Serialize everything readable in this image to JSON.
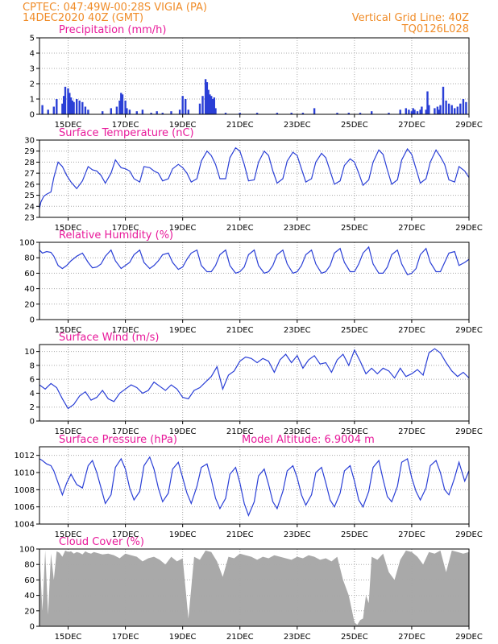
{
  "header": {
    "station": "CPTEC:   047:49W-00:28S   VIGIA (PA)",
    "run_time": "14DEC2020 40Z (GMT)",
    "grid_label": "Vertical Grid Line: 40Z",
    "product_code": "TQ0126L028"
  },
  "colors": {
    "header": "#f08c28",
    "title": "#e8199a",
    "line": "#2a3fd6",
    "cloud": "#a9a9a9",
    "grid": "#a8a8a8"
  },
  "chart_data": [
    {
      "type": "bar",
      "title": "Precipitation (mm/h)",
      "x_ticks": [
        "15DEC",
        "17DEC",
        "19DEC",
        "21DEC",
        "23DEC",
        "25DEC",
        "27DEC",
        "29DEC"
      ],
      "ylim": [
        0,
        5
      ],
      "y_ticks": [
        0,
        1,
        2,
        3,
        4,
        5
      ],
      "x_range_days": [
        14.0,
        29.0
      ],
      "color": "#2a3fd6",
      "x": [
        14.1,
        14.3,
        14.5,
        14.6,
        14.8,
        14.85,
        14.9,
        15.0,
        15.05,
        15.1,
        15.15,
        15.2,
        15.3,
        15.4,
        15.5,
        15.6,
        15.7,
        16.2,
        16.5,
        16.7,
        16.8,
        16.85,
        16.9,
        17.0,
        17.05,
        17.15,
        17.4,
        17.6,
        17.9,
        18.1,
        18.3,
        18.6,
        18.9,
        19.0,
        19.1,
        19.2,
        19.6,
        19.7,
        19.8,
        19.85,
        19.9,
        19.95,
        20.0,
        20.05,
        20.1,
        20.15,
        20.5,
        21.0,
        21.6,
        22.3,
        22.8,
        23.2,
        23.6,
        24.4,
        24.8,
        25.2,
        25.6,
        26.2,
        26.6,
        26.8,
        26.9,
        27.0,
        27.05,
        27.1,
        27.2,
        27.3,
        27.35,
        27.5,
        27.55,
        27.6,
        27.8,
        27.9,
        27.95,
        28.0,
        28.1,
        28.2,
        28.3,
        28.4,
        28.5,
        28.6,
        28.7,
        28.8,
        28.9
      ],
      "values": [
        0.6,
        0.3,
        0.5,
        1.0,
        0.7,
        1.2,
        1.8,
        1.7,
        1.4,
        1.1,
        0.9,
        0.8,
        1.0,
        0.9,
        0.8,
        0.5,
        0.3,
        0.2,
        0.4,
        0.5,
        0.9,
        1.4,
        1.3,
        0.9,
        0.4,
        0.3,
        0.2,
        0.3,
        0.1,
        0.2,
        0.1,
        0.2,
        0.3,
        1.2,
        1.0,
        0.3,
        0.7,
        1.2,
        2.3,
        2.1,
        1.6,
        1.3,
        1.2,
        1.0,
        1.1,
        0.4,
        0.1,
        0.1,
        0.1,
        0.1,
        0.1,
        0.1,
        0.4,
        0.1,
        0.1,
        0.1,
        0.2,
        0.1,
        0.3,
        0.4,
        0.3,
        0.2,
        0.4,
        0.3,
        0.2,
        0.3,
        0.5,
        0.3,
        1.5,
        0.6,
        0.4,
        0.5,
        0.3,
        0.6,
        1.8,
        0.9,
        0.7,
        0.6,
        0.4,
        0.5,
        0.7,
        1.0,
        0.8
      ]
    },
    {
      "type": "line",
      "title": "Surface Temperature (nC)",
      "x_ticks": [
        "15DEC",
        "17DEC",
        "19DEC",
        "21DEC",
        "23DEC",
        "25DEC",
        "27DEC",
        "29DEC"
      ],
      "ylim": [
        23,
        30
      ],
      "y_ticks": [
        23,
        24,
        25,
        26,
        27,
        28,
        29,
        30
      ],
      "x_range_days": [
        14.0,
        29.0
      ],
      "color": "#2a3fd6",
      "x": [
        14.0,
        14.05,
        14.15,
        14.25,
        14.4,
        14.5,
        14.65,
        14.8,
        14.95,
        15.1,
        15.3,
        15.5,
        15.7,
        15.85,
        16.0,
        16.15,
        16.3,
        16.5,
        16.65,
        16.85,
        17.0,
        17.15,
        17.3,
        17.5,
        17.65,
        17.85,
        18.0,
        18.15,
        18.3,
        18.5,
        18.65,
        18.85,
        19.0,
        19.15,
        19.3,
        19.5,
        19.65,
        19.85,
        20.0,
        20.15,
        20.3,
        20.5,
        20.65,
        20.85,
        21.0,
        21.15,
        21.3,
        21.5,
        21.65,
        21.85,
        22.0,
        22.15,
        22.3,
        22.5,
        22.65,
        22.85,
        23.0,
        23.15,
        23.3,
        23.5,
        23.65,
        23.85,
        24.0,
        24.15,
        24.3,
        24.5,
        24.65,
        24.85,
        25.0,
        25.15,
        25.3,
        25.5,
        25.65,
        25.85,
        26.0,
        26.15,
        26.3,
        26.5,
        26.65,
        26.85,
        27.0,
        27.15,
        27.3,
        27.5,
        27.65,
        27.85,
        28.0,
        28.15,
        28.3,
        28.5,
        28.65,
        28.85,
        29.0
      ],
      "values": [
        23.8,
        24.4,
        24.9,
        25.1,
        25.3,
        26.6,
        28.0,
        27.6,
        26.8,
        26.2,
        25.6,
        26.3,
        27.6,
        27.3,
        27.2,
        26.8,
        26.1,
        27.0,
        28.2,
        27.5,
        27.4,
        27.2,
        26.5,
        26.2,
        27.6,
        27.5,
        27.2,
        27.0,
        26.3,
        26.5,
        27.4,
        27.8,
        27.5,
        27.0,
        26.2,
        26.5,
        28.1,
        29.0,
        28.6,
        27.8,
        26.5,
        26.5,
        28.4,
        29.3,
        29.0,
        27.8,
        26.3,
        26.4,
        28.0,
        29.0,
        28.6,
        27.2,
        26.1,
        26.5,
        28.1,
        28.9,
        28.6,
        27.4,
        26.2,
        26.5,
        28.0,
        28.8,
        28.4,
        27.2,
        26.0,
        26.3,
        27.7,
        28.3,
        28.0,
        27.0,
        25.9,
        26.4,
        28.0,
        29.1,
        28.7,
        27.3,
        26.0,
        26.4,
        28.2,
        29.2,
        28.7,
        27.4,
        26.1,
        26.5,
        28.0,
        29.1,
        28.5,
        27.8,
        26.4,
        26.2,
        27.6,
        27.2,
        26.6
      ]
    },
    {
      "type": "line",
      "title": "Relative Humidity (%)",
      "x_ticks": [
        "15DEC",
        "17DEC",
        "19DEC",
        "21DEC",
        "23DEC",
        "25DEC",
        "27DEC",
        "29DEC"
      ],
      "ylim": [
        0,
        100
      ],
      "y_ticks": [
        0,
        20,
        40,
        60,
        80,
        100
      ],
      "x_range_days": [
        14.0,
        29.0
      ],
      "color": "#2a3fd6",
      "x": [
        14.0,
        14.1,
        14.25,
        14.4,
        14.5,
        14.65,
        14.8,
        14.95,
        15.1,
        15.3,
        15.5,
        15.7,
        15.85,
        16.0,
        16.15,
        16.3,
        16.5,
        16.65,
        16.85,
        17.0,
        17.15,
        17.3,
        17.5,
        17.65,
        17.85,
        18.0,
        18.15,
        18.3,
        18.5,
        18.65,
        18.85,
        19.0,
        19.15,
        19.3,
        19.5,
        19.65,
        19.85,
        20.0,
        20.15,
        20.3,
        20.5,
        20.65,
        20.85,
        21.0,
        21.15,
        21.3,
        21.5,
        21.65,
        21.85,
        22.0,
        22.15,
        22.3,
        22.5,
        22.65,
        22.85,
        23.0,
        23.15,
        23.3,
        23.5,
        23.65,
        23.85,
        24.0,
        24.15,
        24.3,
        24.5,
        24.65,
        24.85,
        25.0,
        25.15,
        25.3,
        25.5,
        25.65,
        25.85,
        26.0,
        26.15,
        26.3,
        26.5,
        26.65,
        26.85,
        27.0,
        27.15,
        27.3,
        27.5,
        27.65,
        27.85,
        28.0,
        28.15,
        28.3,
        28.5,
        28.65,
        28.85,
        29.0
      ],
      "values": [
        90,
        86,
        88,
        87,
        82,
        70,
        66,
        70,
        76,
        82,
        86,
        74,
        67,
        68,
        72,
        82,
        90,
        76,
        66,
        70,
        74,
        84,
        90,
        74,
        66,
        70,
        76,
        84,
        86,
        74,
        65,
        68,
        78,
        86,
        90,
        70,
        62,
        62,
        70,
        84,
        90,
        70,
        60,
        62,
        68,
        84,
        90,
        70,
        60,
        62,
        70,
        84,
        90,
        72,
        60,
        62,
        70,
        84,
        90,
        72,
        60,
        62,
        70,
        86,
        92,
        74,
        62,
        62,
        72,
        86,
        94,
        72,
        60,
        60,
        68,
        84,
        90,
        72,
        58,
        60,
        66,
        84,
        92,
        74,
        62,
        62,
        74,
        86,
        88,
        70,
        74,
        78
      ]
    },
    {
      "type": "line",
      "title": "Surface Wind (m/s)",
      "x_ticks": [
        "15DEC",
        "17DEC",
        "19DEC",
        "21DEC",
        "23DEC",
        "25DEC",
        "27DEC",
        "29DEC"
      ],
      "ylim": [
        0,
        11
      ],
      "y_ticks": [
        0,
        2,
        4,
        6,
        8,
        10
      ],
      "x_range_days": [
        14.0,
        29.0
      ],
      "color": "#2a3fd6",
      "x": [
        14.0,
        14.2,
        14.4,
        14.6,
        14.8,
        15.0,
        15.2,
        15.4,
        15.6,
        15.8,
        16.0,
        16.2,
        16.4,
        16.6,
        16.8,
        17.0,
        17.2,
        17.4,
        17.6,
        17.8,
        18.0,
        18.2,
        18.4,
        18.6,
        18.8,
        19.0,
        19.2,
        19.4,
        19.6,
        19.8,
        20.0,
        20.2,
        20.4,
        20.6,
        20.8,
        21.0,
        21.2,
        21.4,
        21.6,
        21.8,
        22.0,
        22.2,
        22.4,
        22.6,
        22.8,
        23.0,
        23.2,
        23.4,
        23.6,
        23.8,
        24.0,
        24.2,
        24.4,
        24.6,
        24.8,
        25.0,
        25.2,
        25.4,
        25.6,
        25.8,
        26.0,
        26.2,
        26.4,
        26.6,
        26.8,
        27.0,
        27.2,
        27.4,
        27.6,
        27.8,
        28.0,
        28.2,
        28.4,
        28.6,
        28.8,
        29.0
      ],
      "values": [
        5.2,
        4.6,
        5.4,
        4.8,
        3.2,
        1.8,
        2.4,
        3.6,
        4.2,
        3.0,
        3.4,
        4.4,
        3.2,
        2.8,
        4.0,
        4.6,
        5.2,
        4.8,
        4.0,
        4.4,
        5.6,
        5.0,
        4.4,
        5.2,
        4.6,
        3.4,
        3.2,
        4.4,
        4.8,
        5.6,
        6.4,
        7.8,
        4.6,
        6.6,
        7.2,
        8.6,
        9.2,
        9.0,
        8.4,
        9.0,
        8.6,
        7.0,
        8.8,
        9.6,
        8.4,
        9.4,
        7.6,
        8.8,
        9.4,
        8.2,
        8.4,
        7.0,
        8.8,
        9.6,
        8.0,
        10.2,
        8.6,
        6.8,
        7.6,
        6.8,
        7.6,
        7.2,
        6.2,
        7.6,
        6.4,
        6.8,
        7.4,
        6.6,
        9.8,
        10.4,
        9.8,
        8.4,
        7.2,
        6.4,
        7.0,
        6.2
      ]
    },
    {
      "type": "line",
      "title": "Surface Pressure (hPa)",
      "annotation": "Model Altitude: 6.9004 m",
      "x_ticks": [
        "15DEC",
        "17DEC",
        "19DEC",
        "21DEC",
        "23DEC",
        "25DEC",
        "27DEC",
        "29DEC"
      ],
      "ylim": [
        1004,
        1013
      ],
      "y_ticks": [
        1004,
        1006,
        1008,
        1010,
        1012
      ],
      "x_range_days": [
        14.0,
        29.0
      ],
      "color": "#2a3fd6",
      "x": [
        14.0,
        14.1,
        14.25,
        14.4,
        14.5,
        14.65,
        14.8,
        14.95,
        15.1,
        15.3,
        15.5,
        15.7,
        15.85,
        16.0,
        16.15,
        16.3,
        16.5,
        16.65,
        16.85,
        17.0,
        17.15,
        17.3,
        17.5,
        17.65,
        17.85,
        18.0,
        18.15,
        18.3,
        18.5,
        18.65,
        18.85,
        19.0,
        19.15,
        19.3,
        19.5,
        19.65,
        19.85,
        20.0,
        20.15,
        20.3,
        20.5,
        20.65,
        20.85,
        21.0,
        21.15,
        21.3,
        21.5,
        21.65,
        21.85,
        22.0,
        22.15,
        22.3,
        22.5,
        22.65,
        22.85,
        23.0,
        23.15,
        23.3,
        23.5,
        23.65,
        23.85,
        24.0,
        24.15,
        24.3,
        24.5,
        24.65,
        24.85,
        25.0,
        25.15,
        25.3,
        25.5,
        25.65,
        25.85,
        26.0,
        26.15,
        26.3,
        26.5,
        26.65,
        26.85,
        27.0,
        27.15,
        27.3,
        27.5,
        27.65,
        27.85,
        28.0,
        28.15,
        28.3,
        28.5,
        28.65,
        28.85,
        29.0
      ],
      "values": [
        1011.6,
        1011.4,
        1011.0,
        1010.8,
        1010.2,
        1008.8,
        1007.4,
        1008.8,
        1009.8,
        1008.6,
        1008.2,
        1010.8,
        1011.4,
        1010.0,
        1008.2,
        1006.4,
        1007.4,
        1010.6,
        1011.6,
        1010.4,
        1008.2,
        1006.8,
        1007.8,
        1010.8,
        1011.8,
        1010.4,
        1008.2,
        1006.6,
        1007.6,
        1010.4,
        1011.2,
        1009.4,
        1007.6,
        1006.4,
        1008.4,
        1010.6,
        1011.0,
        1009.2,
        1007.0,
        1005.8,
        1007.0,
        1009.8,
        1010.6,
        1008.8,
        1006.4,
        1005.0,
        1006.6,
        1009.6,
        1010.4,
        1008.6,
        1006.6,
        1005.8,
        1007.8,
        1010.2,
        1010.8,
        1009.4,
        1007.4,
        1006.2,
        1007.4,
        1010.0,
        1010.6,
        1008.8,
        1006.8,
        1006.0,
        1007.6,
        1010.2,
        1010.8,
        1009.0,
        1006.8,
        1006.0,
        1007.8,
        1010.6,
        1011.4,
        1009.2,
        1007.2,
        1006.6,
        1008.4,
        1011.2,
        1011.6,
        1009.4,
        1007.8,
        1006.8,
        1008.2,
        1010.8,
        1011.4,
        1010.0,
        1008.0,
        1007.4,
        1009.4,
        1011.2,
        1009.0,
        1010.2
      ]
    },
    {
      "type": "area",
      "title": "Cloud Cover (%)",
      "x_ticks": [
        "15DEC",
        "17DEC",
        "19DEC",
        "21DEC",
        "23DEC",
        "25DEC",
        "27DEC",
        "29DEC"
      ],
      "ylim": [
        0,
        100
      ],
      "y_ticks": [
        0,
        20,
        40,
        60,
        80,
        100
      ],
      "x_range_days": [
        14.0,
        29.0
      ],
      "color": "#a9a9a9",
      "x": [
        14.0,
        14.1,
        14.2,
        14.3,
        14.4,
        14.5,
        14.6,
        14.7,
        14.8,
        14.9,
        15.0,
        15.1,
        15.2,
        15.3,
        15.4,
        15.5,
        15.6,
        15.7,
        15.8,
        15.9,
        16.0,
        16.2,
        16.4,
        16.6,
        16.8,
        17.0,
        17.2,
        17.4,
        17.6,
        17.8,
        18.0,
        18.2,
        18.4,
        18.6,
        18.8,
        19.0,
        19.2,
        19.4,
        19.6,
        19.8,
        20.0,
        20.2,
        20.4,
        20.6,
        20.8,
        21.0,
        21.2,
        21.4,
        21.6,
        21.8,
        22.0,
        22.2,
        22.4,
        22.6,
        22.8,
        23.0,
        23.2,
        23.4,
        23.6,
        23.8,
        24.0,
        24.2,
        24.4,
        24.6,
        24.8,
        25.0,
        25.1,
        25.2,
        25.3,
        25.4,
        25.5,
        25.6,
        25.8,
        26.0,
        26.2,
        26.4,
        26.6,
        26.8,
        27.0,
        27.2,
        27.4,
        27.6,
        27.8,
        28.0,
        28.2,
        28.4,
        28.6,
        28.8,
        29.0
      ],
      "values": [
        95,
        20,
        98,
        15,
        94,
        60,
        97,
        95,
        90,
        98,
        96,
        97,
        94,
        96,
        95,
        93,
        97,
        95,
        94,
        96,
        95,
        93,
        94,
        92,
        88,
        94,
        92,
        90,
        84,
        88,
        90,
        86,
        80,
        90,
        84,
        88,
        10,
        90,
        86,
        98,
        96,
        84,
        64,
        90,
        88,
        94,
        92,
        90,
        86,
        90,
        88,
        92,
        90,
        88,
        86,
        90,
        88,
        92,
        90,
        86,
        88,
        84,
        90,
        60,
        40,
        5,
        2,
        8,
        10,
        40,
        30,
        90,
        86,
        94,
        70,
        60,
        86,
        98,
        96,
        90,
        80,
        96,
        94,
        98,
        70,
        98,
        96,
        94,
        96
      ]
    }
  ]
}
